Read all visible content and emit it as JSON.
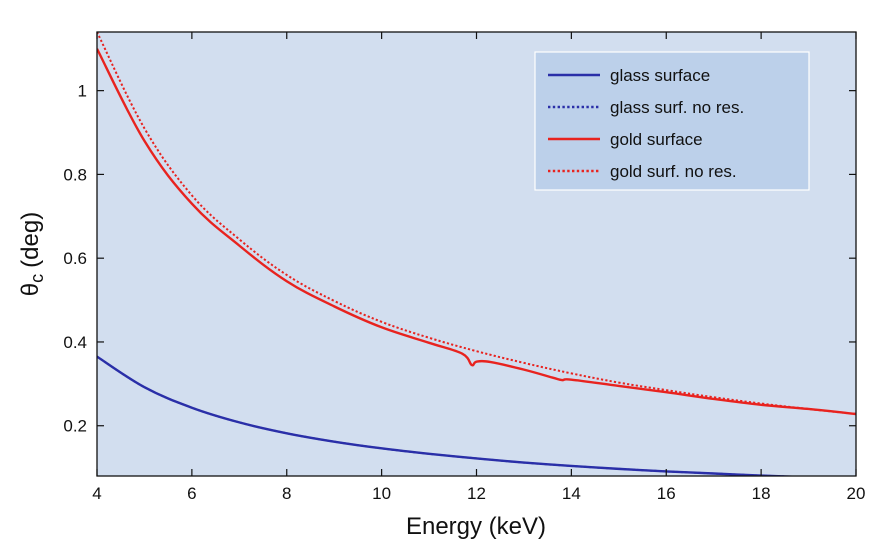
{
  "chart_data": {
    "type": "line",
    "title": "",
    "xlabel": "Energy (keV)",
    "ylabel_symbol": "θ",
    "ylabel_subscript": "c",
    "ylabel_unit": "(deg)",
    "xlim": [
      4,
      20
    ],
    "ylim": [
      0.08,
      1.14
    ],
    "xticks": [
      4,
      6,
      8,
      10,
      12,
      14,
      16,
      18,
      20
    ],
    "yticks": [
      0.2,
      0.4,
      0.6,
      0.8,
      1
    ],
    "ytick_labels": [
      "0.2",
      "0.4",
      "0.6",
      "0.8",
      "1"
    ],
    "grid": false,
    "legend_position": "top-right",
    "background_color": "#d2deef",
    "series": [
      {
        "name": "glass surface",
        "color": "#2a2fa8",
        "style": "solid",
        "x": [
          4,
          5,
          6,
          7,
          8,
          9,
          10,
          11,
          12,
          13,
          14,
          15,
          16,
          17,
          18,
          19,
          20
        ],
        "y": [
          0.365,
          0.292,
          0.243,
          0.208,
          0.182,
          0.162,
          0.146,
          0.133,
          0.122,
          0.112,
          0.104,
          0.097,
          0.091,
          0.086,
          0.081,
          0.077,
          0.073
        ]
      },
      {
        "name": "glass surf. no res.",
        "color": "#2a2fa8",
        "style": "dotted",
        "x": [
          4,
          5,
          6,
          7,
          8,
          9,
          10,
          11,
          12,
          13,
          14,
          15,
          16,
          17,
          18,
          19,
          20
        ],
        "y": [
          0.365,
          0.292,
          0.243,
          0.208,
          0.182,
          0.162,
          0.146,
          0.133,
          0.122,
          0.112,
          0.104,
          0.097,
          0.091,
          0.086,
          0.081,
          0.077,
          0.073
        ]
      },
      {
        "name": "gold surface",
        "color": "#e8231f",
        "style": "solid",
        "x": [
          4,
          5,
          6,
          7,
          8,
          9,
          10,
          11,
          11.7,
          11.9,
          12,
          12.3,
          13,
          13.6,
          13.8,
          14,
          15,
          16,
          17,
          18,
          19,
          20
        ],
        "y": [
          1.1,
          0.88,
          0.73,
          0.63,
          0.545,
          0.485,
          0.435,
          0.398,
          0.372,
          0.345,
          0.353,
          0.352,
          0.334,
          0.315,
          0.309,
          0.31,
          0.295,
          0.28,
          0.264,
          0.25,
          0.24,
          0.228
        ]
      },
      {
        "name": "gold surf. no res.",
        "color": "#e8231f",
        "style": "dotted",
        "x": [
          4,
          5,
          6,
          7,
          8,
          9,
          10,
          11,
          12,
          13,
          14,
          15,
          16,
          17,
          18,
          19,
          20
        ],
        "y": [
          1.14,
          0.91,
          0.75,
          0.645,
          0.56,
          0.498,
          0.448,
          0.41,
          0.378,
          0.35,
          0.325,
          0.303,
          0.285,
          0.268,
          0.253,
          0.24,
          0.228
        ]
      }
    ]
  }
}
